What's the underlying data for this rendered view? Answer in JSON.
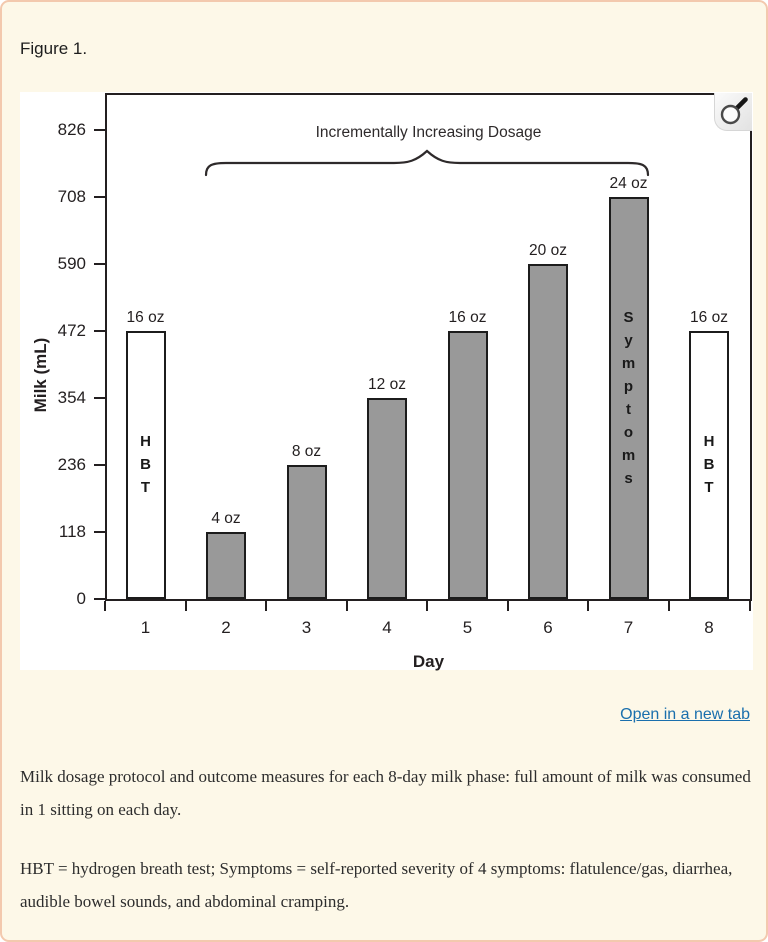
{
  "panel": {
    "background": "#fdf8e8",
    "border_color": "#f3c9ae"
  },
  "figure_label": "Figure 1.",
  "link": {
    "label": "Open in a new tab"
  },
  "icons": {
    "zoom_button": "magnifier-icon"
  },
  "chart_data": {
    "type": "bar",
    "title": "Incrementally Increasing Dosage",
    "xlabel": "Day",
    "ylabel": "Milk (mL)",
    "categories": [
      "1",
      "2",
      "3",
      "4",
      "5",
      "6",
      "7",
      "8"
    ],
    "values": [
      472,
      118,
      236,
      354,
      472,
      590,
      708,
      472
    ],
    "bar_labels": [
      "16 oz",
      "4 oz",
      "8 oz",
      "12 oz",
      "16 oz",
      "20 oz",
      "24 oz",
      "16 oz"
    ],
    "in_bar_text": [
      "HBT",
      "",
      "",
      "",
      "",
      "",
      "Symptoms",
      "HBT"
    ],
    "bar_styles": [
      "white",
      "gray",
      "gray",
      "gray",
      "gray",
      "gray",
      "gray",
      "white"
    ],
    "yticks": [
      0,
      118,
      236,
      354,
      472,
      590,
      708,
      826
    ],
    "ylim": [
      0,
      893
    ],
    "grid": "off",
    "legend": "none",
    "annotation": {
      "brace_label": "Incrementally Increasing Dosage",
      "brace_span_categories": [
        "2",
        "7"
      ]
    },
    "colors": {
      "gray_bar": "#999999",
      "white_bar": "#ffffff",
      "axis": "#231f20"
    }
  },
  "captions": [
    "Milk dosage protocol and outcome measures for each 8-day milk phase: full amount of milk was consumed in 1 sitting on each day.",
    "HBT = hydrogen breath test; Symptoms = self-reported severity of 4 symptoms: flatulence/gas, diarrhea, audible bowel sounds, and abdominal cramping."
  ]
}
